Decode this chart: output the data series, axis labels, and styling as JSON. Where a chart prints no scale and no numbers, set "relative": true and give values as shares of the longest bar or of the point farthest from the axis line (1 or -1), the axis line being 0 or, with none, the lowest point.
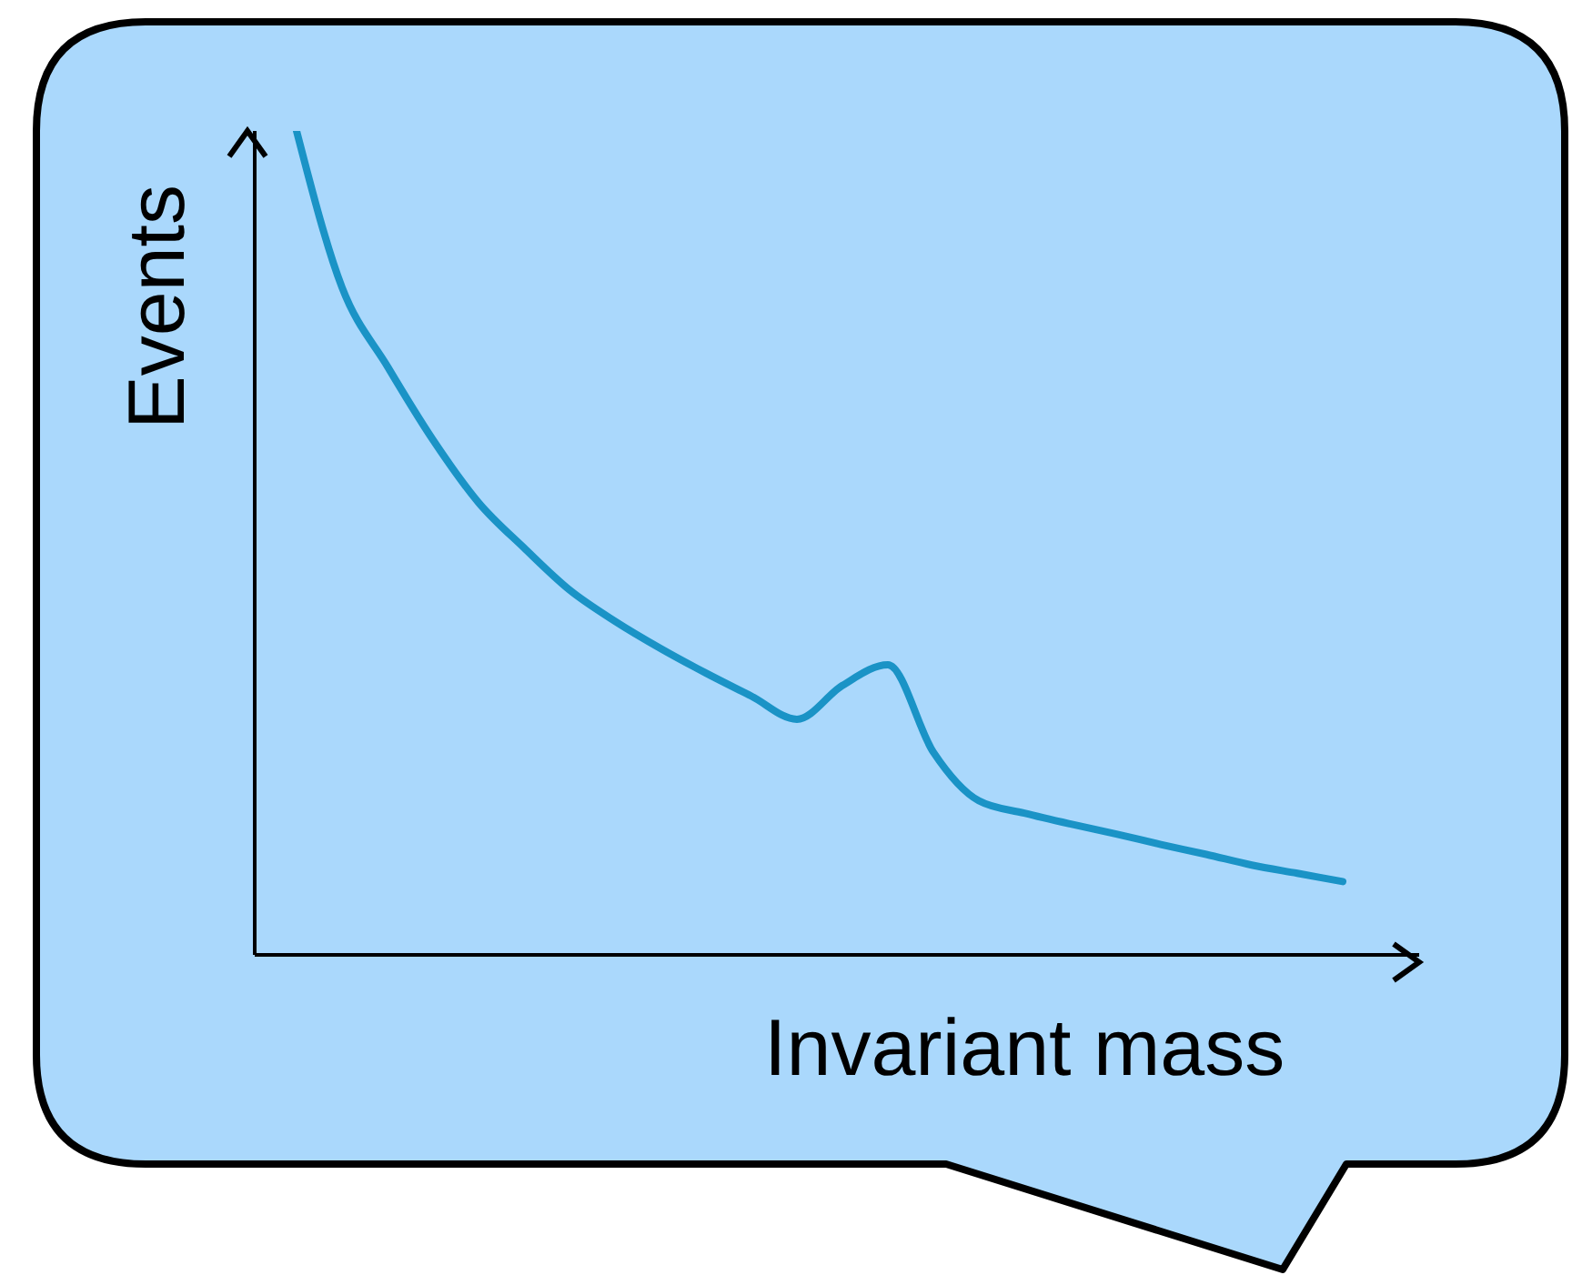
{
  "chart_data": {
    "type": "line",
    "relative": true,
    "xlabel": "Invariant mass",
    "ylabel": "Events",
    "categories": [
      null,
      null,
      null,
      null,
      null,
      null,
      null,
      null,
      null,
      null,
      null,
      null,
      null,
      null,
      null,
      null,
      null,
      null,
      null,
      null,
      null,
      null,
      null,
      null
    ],
    "series": [
      {
        "color": "#1a93c6",
        "values": [
          1,
          0.81,
          0.714,
          0.625,
          0.549,
          0.494,
          0.443,
          0.405,
          0.372,
          0.342,
          0.314,
          0.286,
          0.327,
          0.352,
          0.246,
          0.187,
          0.172,
          0.159,
          0.147,
          0.134,
          0.122,
          0.109,
          0.099,
          0.089
        ]
      }
    ]
  }
}
